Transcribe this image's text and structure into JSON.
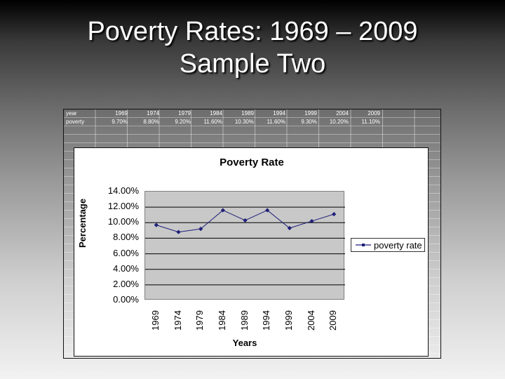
{
  "slide": {
    "title_line1": "Poverty Rates: 1969 – 2009",
    "title_line2": "Sample Two"
  },
  "spreadsheet": {
    "rows": [
      {
        "label": "year",
        "values": [
          "1969",
          "1974",
          "1979",
          "1984",
          "1989",
          "1994",
          "1999",
          "2004",
          "2009"
        ]
      },
      {
        "label": "poverty",
        "values": [
          "9.70%",
          "8.80%",
          "9.20%",
          "11.60%",
          "10.30%",
          "11.60%",
          "9.30%",
          "10.20%",
          "11.10%"
        ]
      }
    ]
  },
  "chart": {
    "title": "Poverty Rate",
    "y_ticks": [
      "14.00%",
      "12.00%",
      "10.00%",
      "8.00%",
      "6.00%",
      "4.00%",
      "2.00%",
      "0.00%"
    ],
    "x_ticks": [
      "1969",
      "1974",
      "1979",
      "1984",
      "1989",
      "1994",
      "1999",
      "2004",
      "2009"
    ],
    "xlabel": "Years",
    "ylabel": "Percentage",
    "legend_label": "poverty rate",
    "colors": {
      "series": "#1f1f7a",
      "plot_bg": "#c8c8c8",
      "gridline": "#000000"
    }
  },
  "chart_data": {
    "type": "line",
    "title": "Poverty Rate",
    "xlabel": "Years",
    "ylabel": "Percentage",
    "categories": [
      "1969",
      "1974",
      "1979",
      "1984",
      "1989",
      "1994",
      "1999",
      "2004",
      "2009"
    ],
    "series": [
      {
        "name": "poverty rate",
        "values": [
          9.7,
          8.8,
          9.2,
          11.6,
          10.3,
          11.6,
          9.3,
          10.2,
          11.1
        ]
      }
    ],
    "ylim": [
      0,
      14
    ],
    "y_tick_step": 2,
    "y_format": "percent_2dp",
    "grid": true,
    "legend_position": "right"
  }
}
